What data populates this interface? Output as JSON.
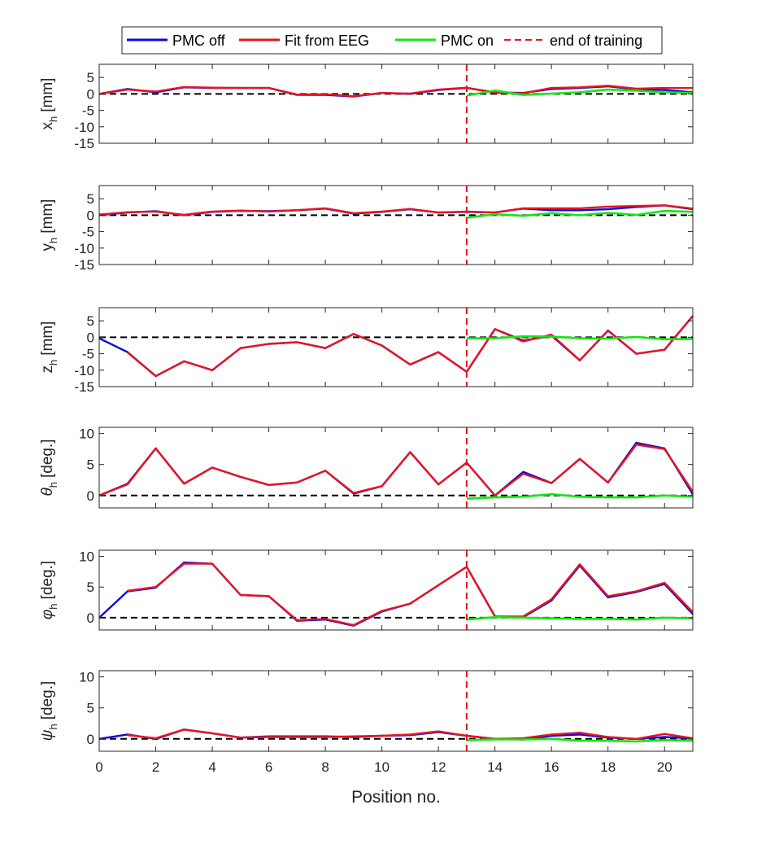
{
  "colors": {
    "pmc_off": "#0a0adc",
    "fit_eeg": "#e8141e",
    "pmc_on": "#14e614",
    "end_training": "#e8141e",
    "zero_line": "#000000",
    "axis": "#262626"
  },
  "legend": {
    "entries": [
      "PMC off",
      "Fit from EEG",
      "PMC on",
      "end of training"
    ]
  },
  "chart_data": {
    "type": "line",
    "xlabel": "Position no.",
    "xlim": [
      0,
      21
    ],
    "xticks": [
      0,
      2,
      4,
      6,
      8,
      10,
      12,
      14,
      16,
      18,
      20
    ],
    "end_of_training_x": 13,
    "panels": [
      {
        "id": "xh",
        "ylabel_main": "x",
        "ylabel_sub": "h",
        "ylabel_unit": "[mm]",
        "greek": false,
        "ylim": [
          -15,
          9
        ],
        "yticks": [
          5,
          0,
          -5,
          -10,
          -15
        ],
        "series": [
          {
            "name": "PMC off",
            "x": [
              0,
              1,
              2,
              3,
              4,
              5,
              6,
              7,
              8,
              9,
              10,
              11,
              12,
              13,
              14,
              15,
              16,
              17,
              18,
              19,
              20,
              21
            ],
            "values": [
              0,
              1.5,
              0.5,
              2,
              1.8,
              1.8,
              1.8,
              -0.3,
              -0.3,
              -0.8,
              0.3,
              0,
              1.2,
              1.8,
              0.5,
              0.3,
              1.5,
              1.8,
              2.3,
              1.4,
              1.2,
              0.5
            ]
          },
          {
            "name": "Fit from EEG",
            "x": [
              0,
              1,
              2,
              3,
              4,
              5,
              6,
              7,
              8,
              9,
              10,
              11,
              12,
              13,
              14,
              15,
              16,
              17,
              18,
              19,
              20,
              21
            ],
            "values": [
              0,
              1.3,
              0.7,
              2.1,
              1.9,
              1.8,
              1.8,
              -0.2,
              -0.1,
              -0.7,
              0.3,
              0.1,
              1.3,
              1.9,
              0.3,
              0.2,
              1.8,
              2,
              2.5,
              1.6,
              1.8,
              1.8
            ]
          },
          {
            "name": "PMC on",
            "x": [
              13,
              14,
              15,
              16,
              17,
              18,
              19,
              20,
              21
            ],
            "values": [
              -0.5,
              1,
              -0.3,
              0.1,
              0.5,
              1.3,
              1,
              0.5,
              0.3
            ]
          }
        ]
      },
      {
        "id": "yh",
        "ylabel_main": "y",
        "ylabel_sub": "h",
        "ylabel_unit": "[mm]",
        "greek": false,
        "ylim": [
          -15,
          9
        ],
        "yticks": [
          5,
          0,
          -5,
          -10,
          -15
        ],
        "series": [
          {
            "name": "PMC off",
            "x": [
              0,
              1,
              2,
              3,
              4,
              5,
              6,
              7,
              8,
              9,
              10,
              11,
              12,
              13,
              14,
              15,
              16,
              17,
              18,
              19,
              20,
              21
            ],
            "values": [
              0,
              0.8,
              1.2,
              0,
              1,
              1.3,
              1.2,
              1.5,
              2,
              0.5,
              1,
              1.8,
              0.8,
              1,
              0.8,
              2,
              1.5,
              1.5,
              1.8,
              2.5,
              3,
              1.8
            ]
          },
          {
            "name": "Fit from EEG",
            "x": [
              0,
              1,
              2,
              3,
              4,
              5,
              6,
              7,
              8,
              9,
              10,
              11,
              12,
              13,
              14,
              15,
              16,
              17,
              18,
              19,
              20,
              21
            ],
            "values": [
              0.2,
              0.9,
              1.1,
              0.1,
              1.1,
              1.4,
              1.1,
              1.5,
              2.1,
              0.6,
              1.1,
              1.9,
              0.8,
              1.1,
              0.8,
              2.1,
              2.1,
              2.1,
              2.6,
              2.8,
              3,
              2
            ]
          },
          {
            "name": "PMC on",
            "x": [
              13,
              14,
              15,
              16,
              17,
              18,
              19,
              20,
              21
            ],
            "values": [
              -0.8,
              0.3,
              -0.2,
              0.6,
              0,
              0.7,
              0.1,
              1.3,
              1
            ]
          }
        ]
      },
      {
        "id": "zh",
        "ylabel_main": "z",
        "ylabel_sub": "h",
        "ylabel_unit": "[mm]",
        "greek": false,
        "ylim": [
          -15,
          9
        ],
        "yticks": [
          5,
          0,
          -5,
          -10,
          -15
        ],
        "series": [
          {
            "name": "PMC off",
            "x": [
              0,
              1,
              2,
              3,
              4,
              5,
              6,
              7,
              8,
              9,
              10,
              11,
              12,
              13,
              14,
              15,
              16,
              17,
              18,
              19,
              20,
              21
            ],
            "values": [
              -0.3,
              -4.5,
              -11.8,
              -7.3,
              -10,
              -3.3,
              -2,
              -1.5,
              -3.3,
              1,
              -2.5,
              -8.3,
              -4.5,
              -10.5,
              2.5,
              -1,
              0.5,
              -7,
              2,
              -5,
              -3.8,
              6.5
            ]
          },
          {
            "name": "Fit from EEG",
            "x": [
              1,
              2,
              3,
              4,
              5,
              6,
              7,
              8,
              9,
              10,
              11,
              12,
              13,
              14,
              15,
              16,
              17,
              18,
              19,
              20,
              21
            ],
            "values": [
              -4.6,
              -11.8,
              -7.3,
              -10,
              -3.3,
              -2,
              -1.5,
              -3.3,
              1,
              -2.5,
              -8.3,
              -4.5,
              -10.5,
              2.5,
              -1.3,
              0.8,
              -7,
              2.1,
              -5,
              -3.8,
              6.5
            ]
          },
          {
            "name": "PMC on",
            "x": [
              13,
              14,
              15,
              16,
              17,
              18,
              19,
              20,
              21
            ],
            "values": [
              -0.3,
              -0.3,
              0.3,
              0.2,
              -0.3,
              -0.4,
              0.1,
              -0.6,
              -0.5
            ]
          }
        ]
      },
      {
        "id": "theta",
        "ylabel_main": "θ",
        "ylabel_sub": "h",
        "ylabel_unit": "[deg.]",
        "greek": true,
        "ylim": [
          -2,
          11
        ],
        "yticks": [
          10,
          5,
          0
        ],
        "series": [
          {
            "name": "PMC off",
            "x": [
              0,
              1,
              2,
              3,
              4,
              5,
              6,
              7,
              8,
              9,
              10,
              11,
              12,
              13,
              14,
              15,
              16,
              17,
              18,
              19,
              20,
              21
            ],
            "values": [
              0,
              1.9,
              7.6,
              1.9,
              4.5,
              3,
              1.7,
              2.1,
              4,
              0.3,
              1.5,
              7,
              1.8,
              5.3,
              0,
              3.8,
              2,
              5.9,
              2.1,
              8.5,
              7.6,
              0.2
            ]
          },
          {
            "name": "Fit from EEG",
            "x": [
              0,
              1,
              2,
              3,
              4,
              5,
              6,
              7,
              8,
              9,
              10,
              11,
              12,
              13,
              14,
              15,
              16,
              17,
              18,
              19,
              20,
              21
            ],
            "values": [
              0,
              1.8,
              7.6,
              1.9,
              4.5,
              3,
              1.7,
              2.1,
              4,
              0.4,
              1.5,
              7,
              1.8,
              5.3,
              0,
              3.5,
              2,
              5.9,
              2.1,
              8.2,
              7.5,
              0.6
            ]
          },
          {
            "name": "PMC on",
            "x": [
              13,
              14,
              15,
              16,
              17,
              18,
              19,
              20,
              21
            ],
            "values": [
              -0.5,
              -0.3,
              -0.2,
              0.2,
              -0.2,
              -0.3,
              -0.3,
              0,
              -0.2
            ]
          }
        ]
      },
      {
        "id": "phi",
        "ylabel_main": "φ",
        "ylabel_sub": "h",
        "ylabel_unit": "[deg.]",
        "greek": true,
        "ylim": [
          -2,
          11
        ],
        "yticks": [
          10,
          5,
          0
        ],
        "series": [
          {
            "name": "PMC off",
            "x": [
              0,
              1,
              2,
              3,
              4,
              5,
              6,
              7,
              8,
              9,
              10,
              11,
              12,
              13,
              14,
              15,
              16,
              17,
              18,
              19,
              20,
              21
            ],
            "values": [
              0,
              4.3,
              4.9,
              9,
              8.8,
              3.7,
              3.5,
              -0.5,
              -0.3,
              -1.3,
              1,
              2.3,
              5.3,
              8.3,
              0.2,
              0.1,
              2.8,
              8.5,
              3.3,
              4.2,
              5.5,
              0.6
            ]
          },
          {
            "name": "Fit from EEG",
            "x": [
              1,
              2,
              3,
              4,
              5,
              6,
              7,
              8,
              9,
              10,
              11,
              12,
              13,
              14,
              15,
              16,
              17,
              18,
              19,
              20,
              21
            ],
            "values": [
              4.4,
              5,
              8.8,
              8.8,
              3.7,
              3.5,
              -0.4,
              -0.2,
              -1.2,
              1.1,
              2.3,
              5.3,
              8.3,
              0.2,
              0.2,
              3,
              8.7,
              3.5,
              4.3,
              5.7,
              0.9
            ]
          },
          {
            "name": "PMC on",
            "x": [
              13,
              14,
              15,
              16,
              17,
              18,
              19,
              20,
              21
            ],
            "values": [
              -0.3,
              0.1,
              0,
              -0.1,
              -0.2,
              -0.2,
              -0.3,
              0,
              -0.1
            ]
          }
        ]
      },
      {
        "id": "psi",
        "ylabel_main": "ψ",
        "ylabel_sub": "h",
        "ylabel_unit": "[deg.]",
        "greek": true,
        "ylim": [
          -2,
          11
        ],
        "yticks": [
          10,
          5,
          0
        ],
        "series": [
          {
            "name": "PMC off",
            "x": [
              0,
              1,
              2,
              3,
              4,
              5,
              6,
              7,
              8,
              9,
              10,
              11,
              12,
              13,
              14,
              15,
              16,
              17,
              18,
              19,
              20,
              21
            ],
            "values": [
              0,
              0.7,
              0,
              1.5,
              0.9,
              0.2,
              0.4,
              0.4,
              0.4,
              0.3,
              0.5,
              0.6,
              1.1,
              0.5,
              0,
              -0.1,
              0.5,
              0.7,
              0.2,
              0,
              0.3,
              0.1
            ]
          },
          {
            "name": "Fit from EEG",
            "x": [
              1,
              2,
              3,
              4,
              5,
              6,
              7,
              8,
              9,
              10,
              11,
              12,
              13,
              14,
              15,
              16,
              17,
              18,
              19,
              20,
              21
            ],
            "values": [
              0.6,
              0.1,
              1.5,
              0.9,
              0.2,
              0.3,
              0.3,
              0.3,
              0.4,
              0.5,
              0.7,
              1.2,
              0.5,
              0,
              0.1,
              0.7,
              1,
              0.3,
              0,
              0.8,
              0.1
            ]
          },
          {
            "name": "PMC on",
            "x": [
              13,
              14,
              15,
              16,
              17,
              18,
              19,
              20,
              21
            ],
            "values": [
              -0.2,
              -0.1,
              -0.1,
              0,
              -0.3,
              -0.3,
              -0.4,
              -0.2,
              -0.3
            ]
          }
        ]
      }
    ]
  }
}
